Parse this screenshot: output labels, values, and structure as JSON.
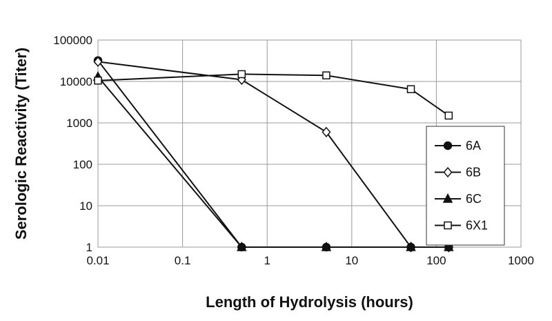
{
  "chart_data": {
    "type": "line",
    "title": "",
    "xlabel": "Length of Hydrolysis (hours)",
    "ylabel": "Serologic Reactivity (Titer)",
    "x_scale": "log",
    "y_scale": "log",
    "xlim": [
      0.01,
      1000
    ],
    "ylim": [
      1,
      100000
    ],
    "x_ticks": [
      0.01,
      0.1,
      1,
      10,
      100,
      1000
    ],
    "x_tick_labels": [
      "0.01",
      "0.1",
      "1",
      "10",
      "100",
      "1000"
    ],
    "y_ticks": [
      1,
      10,
      100,
      1000,
      10000,
      100000
    ],
    "y_tick_labels": [
      "1",
      "10",
      "100",
      "1000",
      "10000",
      "100000"
    ],
    "grid": true,
    "legend_position": "right",
    "series": [
      {
        "name": "6A",
        "marker": "filled-circle",
        "x": [
          0.01,
          0.5,
          5,
          50,
          140
        ],
        "y": [
          32000,
          1,
          1,
          1,
          1
        ]
      },
      {
        "name": "6B",
        "marker": "open-diamond",
        "x": [
          0.01,
          0.5,
          5,
          50,
          140
        ],
        "y": [
          30000,
          11000,
          600,
          1,
          1
        ]
      },
      {
        "name": "6C",
        "marker": "filled-triangle",
        "x": [
          0.01,
          0.5,
          5,
          50,
          140
        ],
        "y": [
          13000,
          1,
          1,
          1,
          1
        ]
      },
      {
        "name": "6X1",
        "marker": "open-square",
        "x": [
          0.01,
          0.5,
          5,
          50,
          140
        ],
        "y": [
          10500,
          15000,
          14000,
          6500,
          1500
        ]
      }
    ]
  }
}
